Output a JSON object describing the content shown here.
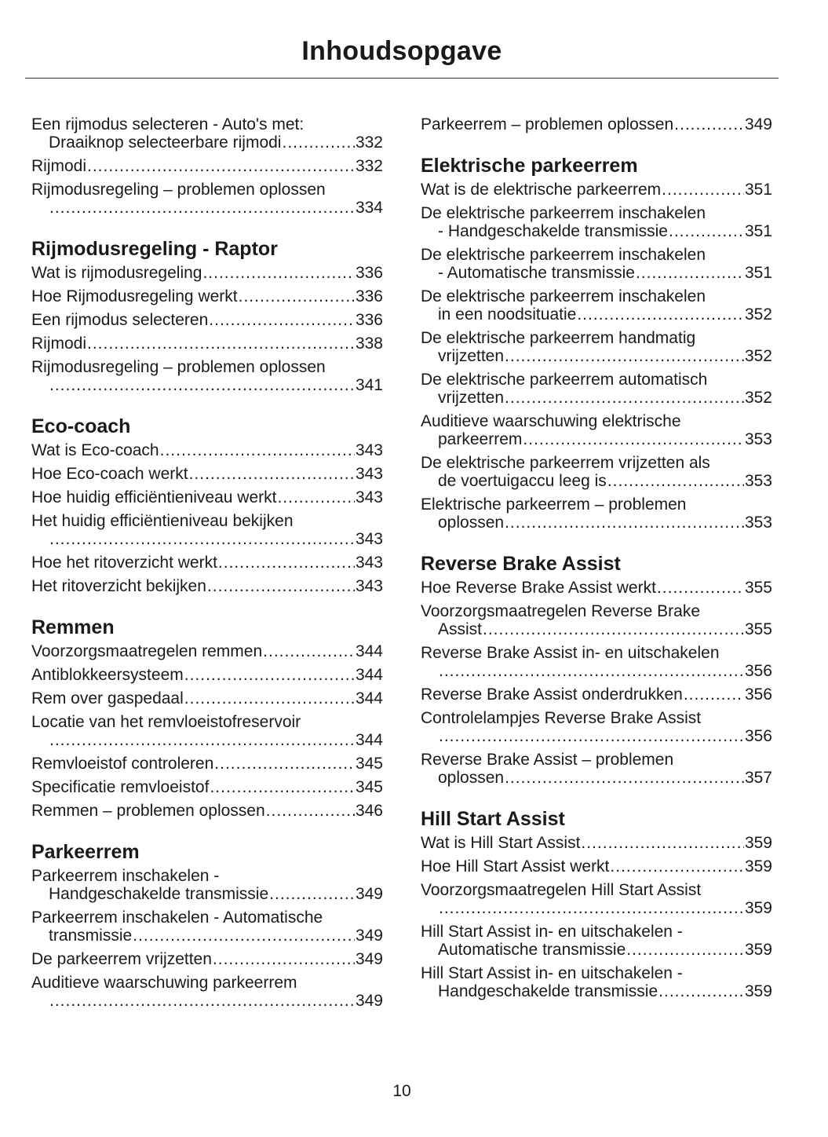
{
  "title": "Inhoudsopgave",
  "page_number": "10",
  "columns": [
    {
      "sections": [
        {
          "heading": "",
          "entries": [
            {
              "lines": [
                "Een rijmodus selecteren - Auto's met:",
                "Draaiknop selecteerbare rijmodi"
              ],
              "page": "332"
            },
            {
              "lines": [
                "Rijmodi"
              ],
              "page": "332"
            },
            {
              "lines": [
                "Rijmodusregeling – problemen oplossen",
                ""
              ],
              "page": "334"
            }
          ]
        },
        {
          "heading": "Rijmodusregeling - Raptor",
          "entries": [
            {
              "lines": [
                "Wat is rijmodusregeling"
              ],
              "page": "336"
            },
            {
              "lines": [
                "Hoe Rijmodusregeling werkt"
              ],
              "page": "336"
            },
            {
              "lines": [
                "Een rijmodus selecteren"
              ],
              "page": "336"
            },
            {
              "lines": [
                "Rijmodi"
              ],
              "page": "338"
            },
            {
              "lines": [
                "Rijmodusregeling – problemen oplossen",
                ""
              ],
              "page": "341"
            }
          ]
        },
        {
          "heading": "Eco-coach",
          "entries": [
            {
              "lines": [
                "Wat is Eco-coach"
              ],
              "page": "343"
            },
            {
              "lines": [
                "Hoe Eco-coach werkt"
              ],
              "page": "343"
            },
            {
              "lines": [
                "Hoe huidig efficiëntieniveau werkt"
              ],
              "page": "343"
            },
            {
              "lines": [
                "Het huidig efficiëntieniveau bekijken",
                ""
              ],
              "page": "343"
            },
            {
              "lines": [
                "Hoe het ritoverzicht werkt"
              ],
              "page": "343"
            },
            {
              "lines": [
                "Het ritoverzicht bekijken"
              ],
              "page": "343"
            }
          ]
        },
        {
          "heading": "Remmen",
          "entries": [
            {
              "lines": [
                "Voorzorgsmaatregelen remmen"
              ],
              "page": "344"
            },
            {
              "lines": [
                "Antiblokkeersysteem"
              ],
              "page": "344"
            },
            {
              "lines": [
                "Rem over gaspedaal"
              ],
              "page": "344"
            },
            {
              "lines": [
                "Locatie van het remvloeistofreservoir",
                ""
              ],
              "page": "344"
            },
            {
              "lines": [
                "Remvloeistof controleren"
              ],
              "page": "345"
            },
            {
              "lines": [
                "Specificatie remvloeistof"
              ],
              "page": "345"
            },
            {
              "lines": [
                "Remmen – problemen oplossen"
              ],
              "page": "346"
            }
          ]
        },
        {
          "heading": "Parkeerrem",
          "entries": [
            {
              "lines": [
                "Parkeerrem inschakelen -",
                "Handgeschakelde transmissie"
              ],
              "page": "349"
            },
            {
              "lines": [
                "Parkeerrem inschakelen - Automatische",
                "transmissie"
              ],
              "page": "349"
            },
            {
              "lines": [
                "De parkeerrem vrijzetten"
              ],
              "page": "349"
            },
            {
              "lines": [
                "Auditieve waarschuwing parkeerrem",
                ""
              ],
              "page": "349"
            }
          ]
        }
      ]
    },
    {
      "sections": [
        {
          "heading": "",
          "entries": [
            {
              "lines": [
                "Parkeerrem – problemen oplossen"
              ],
              "page": "349"
            }
          ]
        },
        {
          "heading": "Elektrische parkeerrem",
          "entries": [
            {
              "lines": [
                "Wat is de elektrische parkeerrem"
              ],
              "page": "351"
            },
            {
              "lines": [
                "De elektrische parkeerrem inschakelen",
                "- Handgeschakelde transmissie"
              ],
              "page": "351"
            },
            {
              "lines": [
                "De elektrische parkeerrem inschakelen",
                "- Automatische transmissie"
              ],
              "page": "351"
            },
            {
              "lines": [
                "De elektrische parkeerrem inschakelen",
                "in een noodsituatie"
              ],
              "page": "352"
            },
            {
              "lines": [
                "De elektrische parkeerrem handmatig",
                "vrijzetten"
              ],
              "page": "352"
            },
            {
              "lines": [
                "De elektrische parkeerrem automatisch",
                "vrijzetten"
              ],
              "page": "352"
            },
            {
              "lines": [
                "Auditieve waarschuwing elektrische",
                "parkeerrem"
              ],
              "page": "353"
            },
            {
              "lines": [
                "De elektrische parkeerrem vrijzetten als",
                "de voertuigaccu leeg is"
              ],
              "page": "353"
            },
            {
              "lines": [
                "Elektrische parkeerrem – problemen",
                "oplossen"
              ],
              "page": "353"
            }
          ]
        },
        {
          "heading": "Reverse Brake Assist",
          "entries": [
            {
              "lines": [
                "Hoe Reverse Brake Assist werkt"
              ],
              "page": "355"
            },
            {
              "lines": [
                "Voorzorgsmaatregelen Reverse Brake",
                "Assist"
              ],
              "page": "355"
            },
            {
              "lines": [
                "Reverse Brake Assist in- en uitschakelen",
                ""
              ],
              "page": "356"
            },
            {
              "lines": [
                "Reverse Brake Assist onderdrukken"
              ],
              "page": "356"
            },
            {
              "lines": [
                "Controlelampjes Reverse Brake Assist",
                ""
              ],
              "page": "356"
            },
            {
              "lines": [
                "Reverse Brake Assist – problemen",
                "oplossen"
              ],
              "page": "357"
            }
          ]
        },
        {
          "heading": "Hill Start Assist",
          "entries": [
            {
              "lines": [
                "Wat is Hill Start Assist"
              ],
              "page": "359"
            },
            {
              "lines": [
                "Hoe Hill Start Assist werkt"
              ],
              "page": "359"
            },
            {
              "lines": [
                "Voorzorgsmaatregelen Hill Start Assist",
                ""
              ],
              "page": "359"
            },
            {
              "lines": [
                "Hill Start Assist in- en uitschakelen -",
                "Automatische transmissie"
              ],
              "page": "359"
            },
            {
              "lines": [
                "Hill Start Assist in- en uitschakelen -",
                "Handgeschakelde transmissie"
              ],
              "page": "359"
            }
          ]
        }
      ]
    }
  ]
}
